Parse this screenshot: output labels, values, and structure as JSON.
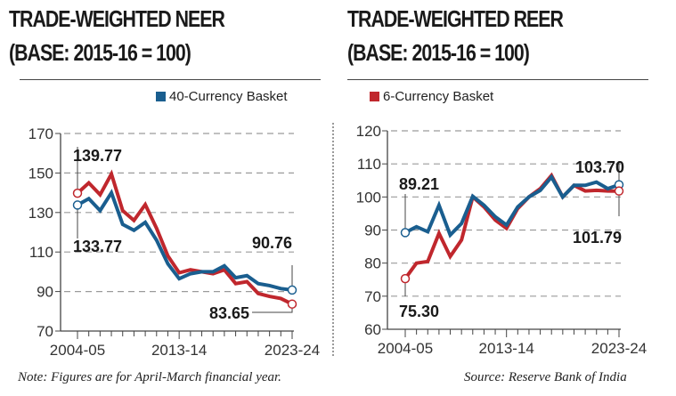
{
  "chart_data": [
    {
      "type": "line",
      "title": "TRADE-WEIGHTED NEER",
      "subtitle": "(BASE: 2015-16 = 100)",
      "xlabel": "",
      "ylabel": "",
      "ylim": [
        70,
        170
      ],
      "yticks": [
        "170",
        "150",
        "130",
        "110",
        "90",
        "70"
      ],
      "ytick_values": [
        170,
        150,
        130,
        110,
        90,
        70
      ],
      "xtick_labels": [
        "2004-05",
        "2013-14",
        "2023-24"
      ],
      "xtick_index": [
        0,
        9,
        19
      ],
      "grid": true,
      "legend": "top-right",
      "legend_entries": [
        "40-Currency Basket"
      ],
      "x": [
        "2004-05",
        "2005-06",
        "2006-07",
        "2007-08",
        "2008-09",
        "2009-10",
        "2010-11",
        "2011-12",
        "2012-13",
        "2013-14",
        "2014-15",
        "2015-16",
        "2016-17",
        "2017-18",
        "2018-19",
        "2019-20",
        "2020-21",
        "2021-22",
        "2022-23",
        "2023-24"
      ],
      "series": [
        {
          "name": "6-Currency Basket",
          "color": "#c0272d",
          "values": [
            139.77,
            145,
            139,
            149.5,
            131,
            126,
            134,
            122,
            108,
            99.5,
            101,
            100,
            99,
            101,
            94,
            95,
            89,
            87.5,
            86.5,
            83.65
          ]
        },
        {
          "name": "40-Currency Basket",
          "color": "#1a5e8f",
          "values": [
            133.77,
            137,
            131,
            140,
            124,
            121,
            125,
            116,
            104,
            96.5,
            99,
            100,
            100,
            103,
            97,
            98,
            94,
            93,
            91.5,
            90.76
          ]
        }
      ],
      "annotations": [
        {
          "text": "139.77",
          "series": "6-Currency Basket",
          "x": "2004-05"
        },
        {
          "text": "133.77",
          "series": "40-Currency Basket",
          "x": "2004-05"
        },
        {
          "text": "90.76",
          "series": "40-Currency Basket",
          "x": "2023-24"
        },
        {
          "text": "83.65",
          "series": "6-Currency Basket",
          "x": "2023-24"
        }
      ]
    },
    {
      "type": "line",
      "title": "TRADE-WEIGHTED REER",
      "subtitle": "(BASE: 2015-16 = 100)",
      "xlabel": "",
      "ylabel": "",
      "ylim": [
        60,
        120
      ],
      "yticks": [
        "120",
        "110",
        "100",
        "90",
        "80",
        "70",
        "60"
      ],
      "ytick_values": [
        120,
        110,
        100,
        90,
        80,
        70,
        60
      ],
      "xtick_labels": [
        "2004-05",
        "2013-14",
        "2023-24"
      ],
      "xtick_index": [
        0,
        9,
        19
      ],
      "grid": true,
      "legend": "top-left",
      "legend_entries": [
        "6-Currency Basket"
      ],
      "x": [
        "2004-05",
        "2005-06",
        "2006-07",
        "2007-08",
        "2008-09",
        "2009-10",
        "2010-11",
        "2011-12",
        "2012-13",
        "2013-14",
        "2014-15",
        "2015-16",
        "2016-17",
        "2017-18",
        "2018-19",
        "2019-20",
        "2020-21",
        "2021-22",
        "2022-23",
        "2023-24"
      ],
      "series": [
        {
          "name": "6-Currency Basket",
          "color": "#c0272d",
          "values": [
            75.3,
            80,
            80.5,
            89,
            82,
            87,
            100,
            97,
            93,
            90.5,
            96.5,
            100,
            102.5,
            106.5,
            100,
            103.5,
            101.8,
            102,
            101.8,
            101.79
          ]
        },
        {
          "name": "40-Currency Basket",
          "color": "#1a5e8f",
          "values": [
            89.21,
            91,
            89.5,
            97.5,
            88.5,
            92,
            100.2,
            97.5,
            94,
            91.5,
            97,
            100,
            102,
            106,
            100,
            103.5,
            103.5,
            104.5,
            102.5,
            103.7
          ]
        }
      ],
      "annotations": [
        {
          "text": "89.21",
          "series": "40-Currency Basket",
          "x": "2004-05"
        },
        {
          "text": "75.30",
          "series": "6-Currency Basket",
          "x": "2004-05"
        },
        {
          "text": "103.70",
          "series": "40-Currency Basket",
          "x": "2023-24"
        },
        {
          "text": "101.79",
          "series": "6-Currency Basket",
          "x": "2023-24"
        }
      ]
    }
  ],
  "left": {
    "title": "TRADE-WEIGHTED NEER",
    "subtitle": "(BASE: 2015-16 = 100)",
    "legend_label": "40-Currency Basket",
    "legend_color": "#1a5e8f"
  },
  "right": {
    "title": "TRADE-WEIGHTED REER",
    "subtitle": "(BASE: 2015-16 = 100)",
    "legend_label": "6-Currency Basket",
    "legend_color": "#c0272d"
  },
  "footer": {
    "note": "Note: Figures are for April-March financial year.",
    "source": "Source: Reserve Bank of India"
  }
}
